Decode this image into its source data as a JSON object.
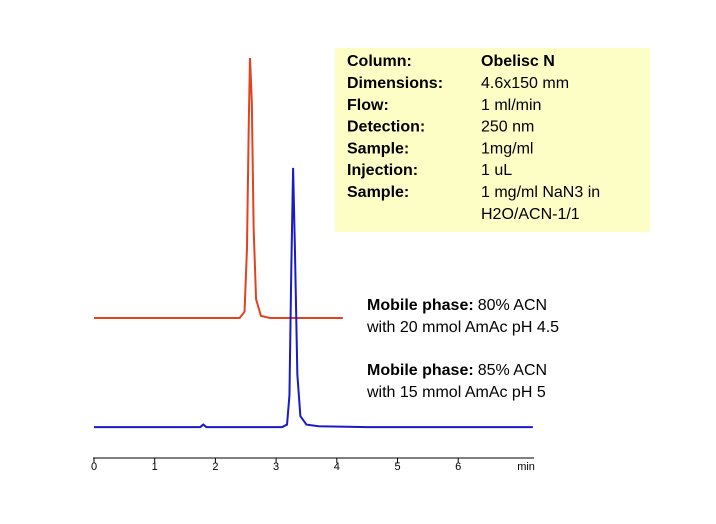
{
  "chart_data": {
    "type": "line",
    "x_label": "min",
    "xlim": [
      0,
      7.25
    ],
    "xticks": [
      0,
      1,
      2,
      3,
      4,
      5,
      6
    ],
    "ylim": [
      0,
      100
    ],
    "series": [
      {
        "color": "#e2431e",
        "x": [
          0,
          2.4,
          2.48,
          2.52,
          2.55,
          2.57,
          2.6,
          2.63,
          2.67,
          2.75,
          2.9,
          4.1
        ],
        "values": [
          33.5,
          33.5,
          35,
          50,
          80,
          95.7,
          85,
          55,
          38,
          34,
          33.5,
          33.5
        ]
      },
      {
        "color": "#1a1ac8",
        "x": [
          0,
          1.75,
          1.8,
          1.85,
          3.1,
          3.18,
          3.22,
          3.25,
          3.28,
          3.31,
          3.35,
          3.4,
          3.5,
          3.7,
          4.5,
          7.23
        ],
        "values": [
          7.4,
          7.4,
          8,
          7.4,
          7.4,
          8,
          15,
          45,
          69.4,
          50,
          20,
          10,
          8,
          7.6,
          7.4,
          7.4
        ]
      }
    ],
    "annotations": [
      {
        "bold": "Mobile phase:",
        "text": "80% ACN",
        "line2": "with 20 mmol AmAc pH 4.5"
      },
      {
        "bold": "Mobile phase:",
        "text": "85% ACN",
        "line2": "with 15 mmol AmAc pH 5"
      }
    ],
    "info_box": {
      "rows": [
        {
          "label": "Column:",
          "value": [
            "Obelisc N"
          ]
        },
        {
          "label": "Dimensions:",
          "value": [
            "4.6x150 mm"
          ]
        },
        {
          "label": "Flow:",
          "value": [
            "1 ml/min"
          ]
        },
        {
          "label": "Detection:",
          "value": [
            "250 nm"
          ]
        },
        {
          "label": "Sample:",
          "value": [
            "1mg/ml"
          ]
        },
        {
          "label": "Injection:",
          "value": [
            "1 uL"
          ]
        },
        {
          "label": "Sample:",
          "value": [
            "1 mg/ml NaN3 in",
            "H2O/ACN-1/1"
          ]
        }
      ]
    }
  }
}
